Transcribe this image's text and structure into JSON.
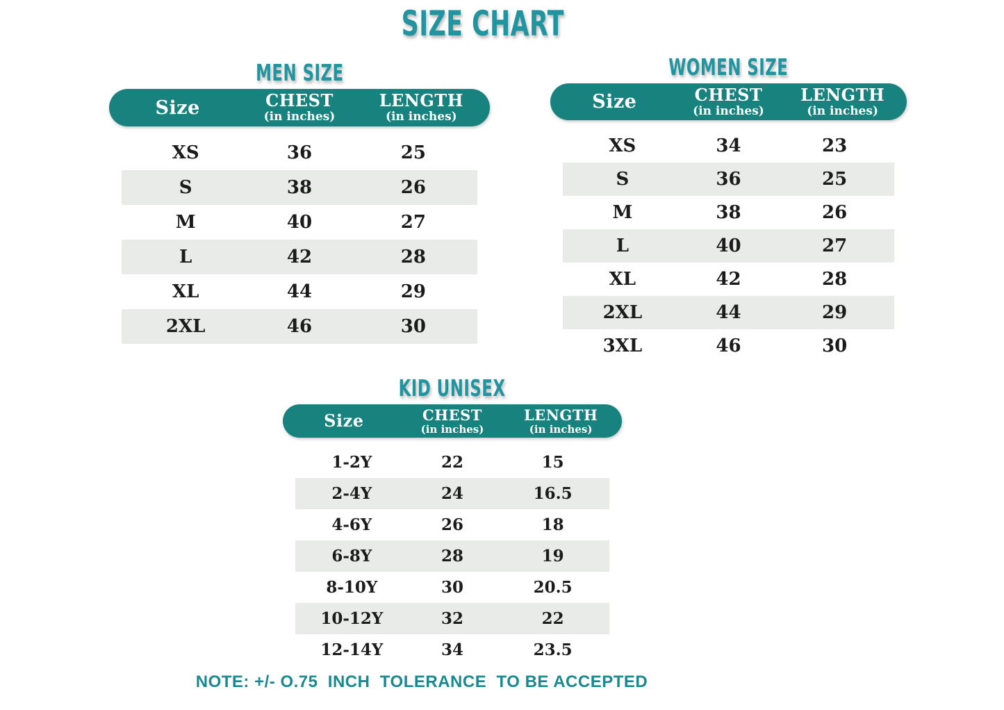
{
  "page": {
    "title": "SIZE CHART",
    "note": "NOTE: +/- O.75  INCH  TOLERANCE  TO BE ACCEPTED"
  },
  "colors": {
    "background": "#FFFFFF",
    "pill_teal": "#17827E",
    "heading_teal": "#2095A0",
    "header_text": "#FFFFFF",
    "row_alt": "#E8EBE8",
    "row_text": "#1B1B1B",
    "note_teal": "#17898F"
  },
  "tables": [
    {
      "id": "men",
      "heading": "MEN SIZE",
      "columns": [
        {
          "label": "Size",
          "sublabel": ""
        },
        {
          "label": "CHEST",
          "sublabel": "(in inches)"
        },
        {
          "label": "LENGTH",
          "sublabel": "(in inches)"
        }
      ],
      "rows": [
        {
          "size": "XS",
          "chest": "36",
          "length": "25"
        },
        {
          "size": "S",
          "chest": "38",
          "length": "26"
        },
        {
          "size": "M",
          "chest": "40",
          "length": "27"
        },
        {
          "size": "L",
          "chest": "42",
          "length": "28"
        },
        {
          "size": "XL",
          "chest": "44",
          "length": "29"
        },
        {
          "size": "2XL",
          "chest": "46",
          "length": "30"
        }
      ]
    },
    {
      "id": "women",
      "heading": "WOMEN SIZE",
      "columns": [
        {
          "label": "Size",
          "sublabel": ""
        },
        {
          "label": "CHEST",
          "sublabel": "(in inches)"
        },
        {
          "label": "LENGTH",
          "sublabel": "(in inches)"
        }
      ],
      "rows": [
        {
          "size": "XS",
          "chest": "34",
          "length": "23"
        },
        {
          "size": "S",
          "chest": "36",
          "length": "25"
        },
        {
          "size": "M",
          "chest": "38",
          "length": "26"
        },
        {
          "size": "L",
          "chest": "40",
          "length": "27"
        },
        {
          "size": "XL",
          "chest": "42",
          "length": "28"
        },
        {
          "size": "2XL",
          "chest": "44",
          "length": "29"
        },
        {
          "size": "3XL",
          "chest": "46",
          "length": "30"
        }
      ]
    },
    {
      "id": "kid",
      "heading": "KID UNISEX",
      "columns": [
        {
          "label": "Size",
          "sublabel": ""
        },
        {
          "label": "CHEST",
          "sublabel": "(in inches)"
        },
        {
          "label": "LENGTH",
          "sublabel": "(in inches)"
        }
      ],
      "rows": [
        {
          "size": "1-2Y",
          "chest": "22",
          "length": "15"
        },
        {
          "size": "2-4Y",
          "chest": "24",
          "length": "16.5"
        },
        {
          "size": "4-6Y",
          "chest": "26",
          "length": "18"
        },
        {
          "size": "6-8Y",
          "chest": "28",
          "length": "19"
        },
        {
          "size": "8-10Y",
          "chest": "30",
          "length": "20.5"
        },
        {
          "size": "10-12Y",
          "chest": "32",
          "length": "22"
        },
        {
          "size": "12-14Y",
          "chest": "34",
          "length": "23.5"
        }
      ]
    }
  ]
}
